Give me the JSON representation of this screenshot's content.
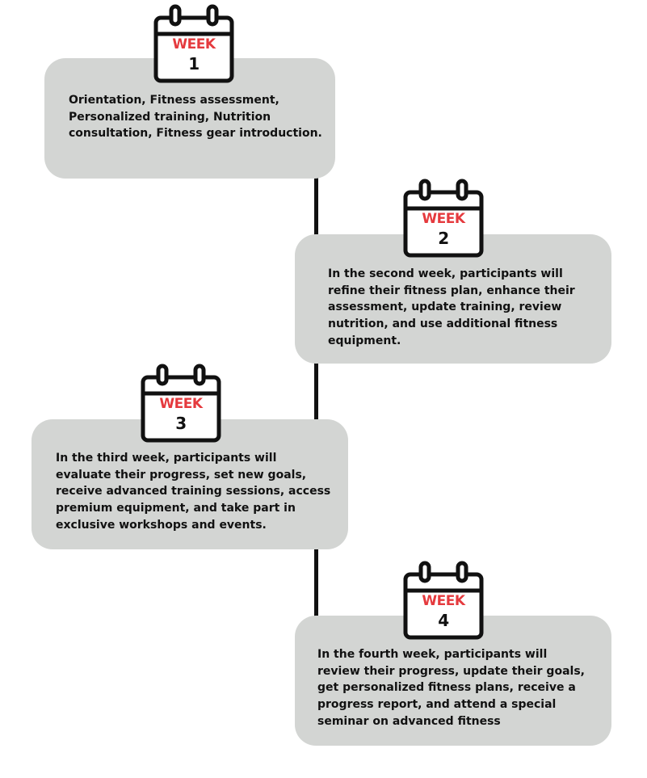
{
  "colors": {
    "card_background": "#d3d5d3",
    "accent_red": "#e53a3e",
    "line": "#111111"
  },
  "weeks": [
    {
      "label": "WEEK",
      "number": "1",
      "icon": "calendar-icon",
      "description": "Orientation, Fitness assessment,\nPersonalized training, Nutrition\nconsultation, Fitness gear introduction."
    },
    {
      "label": "WEEK",
      "number": "2",
      "icon": "calendar-icon",
      "description": "In the second week, participants will\nrefine their fitness plan, enhance their\nassessment, update training, review\nnutrition, and use additional fitness\nequipment."
    },
    {
      "label": "WEEK",
      "number": "3",
      "icon": "calendar-icon",
      "description": "In the third week, participants will\nevaluate their progress, set new goals,\nreceive advanced training sessions, access\npremium equipment, and take part in\nexclusive workshops and events."
    },
    {
      "label": "WEEK",
      "number": "4",
      "icon": "calendar-icon",
      "description": "In the fourth week, participants will\nreview their progress, update their goals,\nget personalized fitness plans, receive a\nprogress report, and attend a special\nseminar on advanced fitness"
    }
  ]
}
